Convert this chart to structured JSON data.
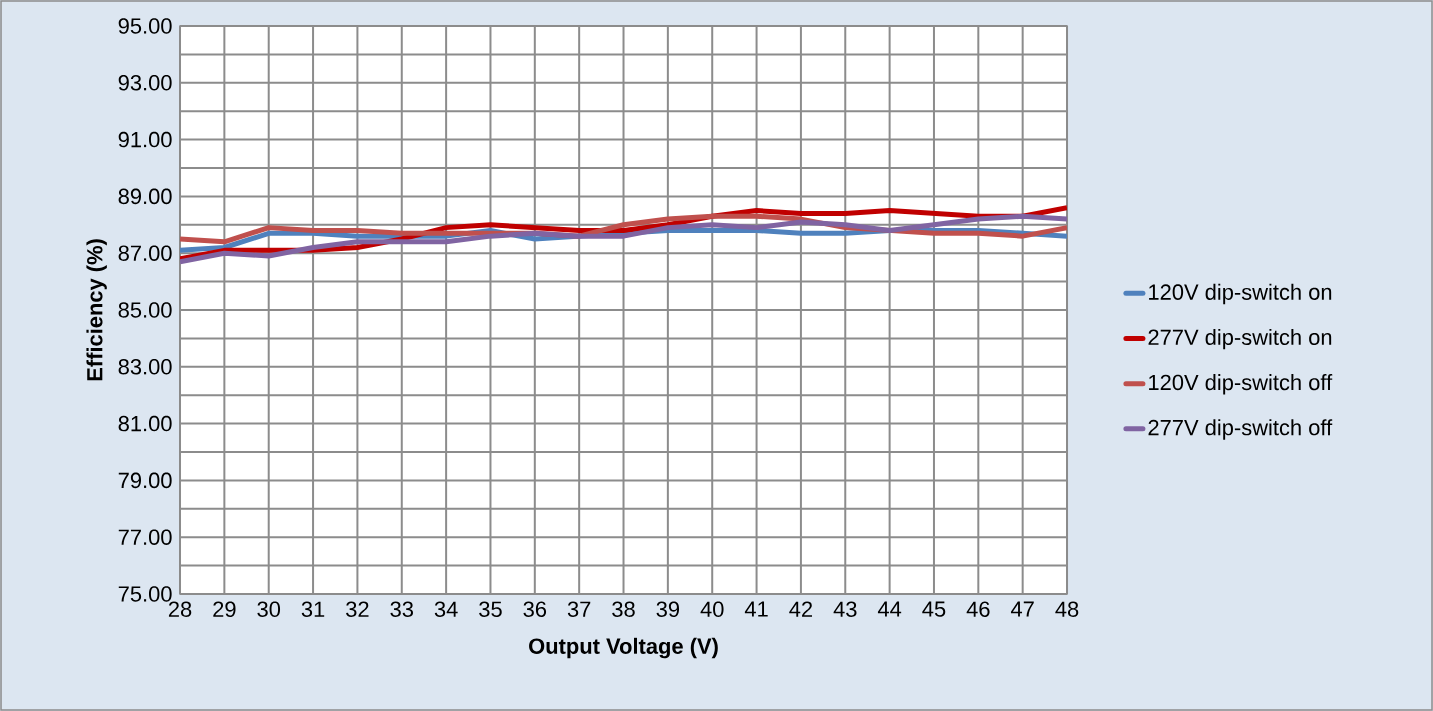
{
  "chart_data": {
    "type": "line",
    "xlabel": "Output Voltage (V)",
    "ylabel": "Efficiency (%)",
    "x": [
      28,
      29,
      30,
      31,
      32,
      33,
      34,
      35,
      36,
      37,
      38,
      39,
      40,
      41,
      42,
      43,
      44,
      45,
      46,
      47,
      48
    ],
    "xlim": [
      28,
      48
    ],
    "xticks": [
      28,
      29,
      30,
      31,
      32,
      33,
      34,
      35,
      36,
      37,
      38,
      39,
      40,
      41,
      42,
      43,
      44,
      45,
      46,
      47,
      48
    ],
    "ylim": [
      75,
      95
    ],
    "yticks": [
      {
        "value": 75,
        "label": "75.00"
      },
      {
        "value": 76,
        "label": null
      },
      {
        "value": 77,
        "label": "77.00"
      },
      {
        "value": 78,
        "label": null
      },
      {
        "value": 79,
        "label": "79.00"
      },
      {
        "value": 80,
        "label": null
      },
      {
        "value": 81,
        "label": "81.00"
      },
      {
        "value": 82,
        "label": null
      },
      {
        "value": 83,
        "label": "83.00"
      },
      {
        "value": 84,
        "label": null
      },
      {
        "value": 85,
        "label": "85.00"
      },
      {
        "value": 86,
        "label": null
      },
      {
        "value": 87,
        "label": "87.00"
      },
      {
        "value": 88,
        "label": null
      },
      {
        "value": 89,
        "label": "89.00"
      },
      {
        "value": 90,
        "label": null
      },
      {
        "value": 91,
        "label": "91.00"
      },
      {
        "value": 92,
        "label": null
      },
      {
        "value": 93,
        "label": "93.00"
      },
      {
        "value": 94,
        "label": null
      },
      {
        "value": 95,
        "label": "95.00"
      }
    ],
    "grid": true,
    "legend": "right",
    "marker": "none",
    "line_style": "solid",
    "series": [
      {
        "name": "120V dip-switch on",
        "color": "#4f81bd",
        "values": [
          87.1,
          87.2,
          87.7,
          87.7,
          87.6,
          87.6,
          87.6,
          87.8,
          87.5,
          87.6,
          87.7,
          87.8,
          87.8,
          87.8,
          87.7,
          87.7,
          87.8,
          87.8,
          87.8,
          87.7,
          87.6
        ]
      },
      {
        "name": "277V dip-switch on",
        "color": "#c00000",
        "values": [
          86.8,
          87.1,
          87.1,
          87.1,
          87.2,
          87.5,
          87.9,
          88.0,
          87.9,
          87.8,
          87.8,
          88.0,
          88.3,
          88.5,
          88.4,
          88.4,
          88.5,
          88.4,
          88.3,
          88.3,
          88.6
        ]
      },
      {
        "name": "120V dip-switch off",
        "color": "#c0504d",
        "values": [
          87.5,
          87.4,
          87.9,
          87.8,
          87.8,
          87.7,
          87.7,
          87.7,
          87.7,
          87.6,
          88.0,
          88.2,
          88.3,
          88.3,
          88.2,
          87.9,
          87.8,
          87.7,
          87.7,
          87.6,
          87.9
        ]
      },
      {
        "name": "277V dip-switch off",
        "color": "#8064a2",
        "values": [
          86.7,
          87.0,
          86.9,
          87.2,
          87.4,
          87.4,
          87.4,
          87.6,
          87.7,
          87.6,
          87.6,
          87.9,
          88.0,
          87.9,
          88.1,
          88.0,
          87.8,
          88.0,
          88.2,
          88.3,
          88.2
        ]
      }
    ]
  }
}
